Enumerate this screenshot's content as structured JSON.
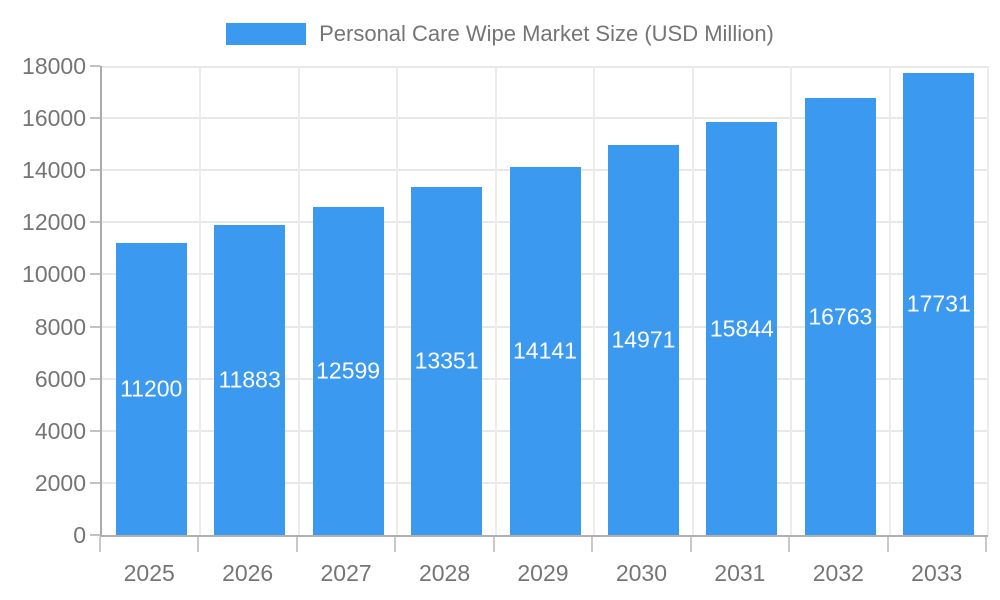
{
  "chart_data": {
    "type": "bar",
    "title": "Personal Care Wipe Market Size (USD Million)",
    "categories": [
      "2025",
      "2026",
      "2027",
      "2028",
      "2029",
      "2030",
      "2031",
      "2032",
      "2033"
    ],
    "values": [
      11200,
      11883,
      12599,
      13351,
      14141,
      14971,
      15844,
      16763,
      17731
    ],
    "xlabel": "",
    "ylabel": "",
    "ylim": [
      0,
      18000
    ],
    "ytick_step": 2000,
    "yticks": [
      0,
      2000,
      4000,
      6000,
      8000,
      10000,
      12000,
      14000,
      16000,
      18000
    ],
    "grid": true,
    "legend_position": "top-center",
    "bar_color": "#3B99F0",
    "value_label_color": "#FFFFFF",
    "axis_text_color": "#757575"
  }
}
